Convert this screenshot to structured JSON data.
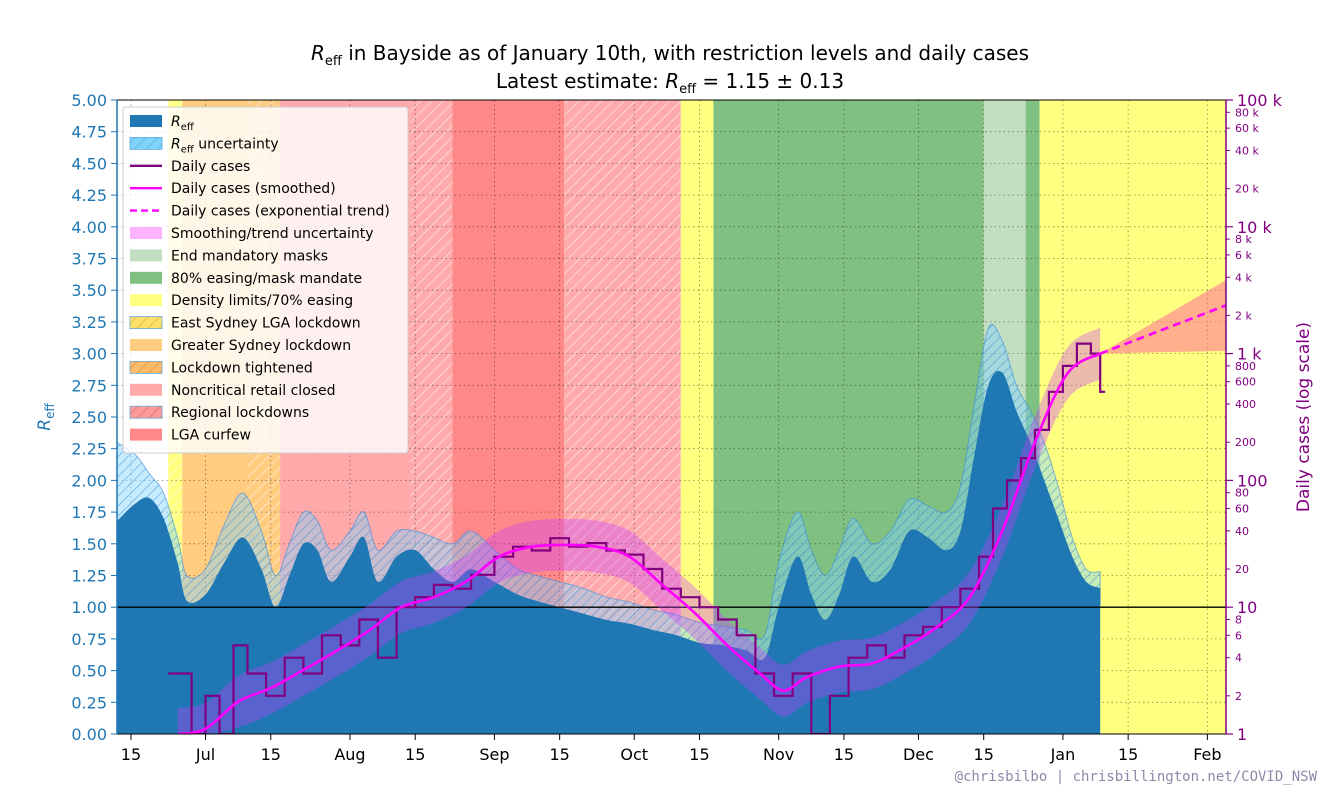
{
  "chart_data": {
    "type": "line",
    "title_line1": "R_eff in Bayside as of January 10th, with restriction levels and daily cases",
    "title_line2": "Latest estimate: R_eff = 1.15 ± 0.13",
    "title_parts": {
      "line1_symbol": "R",
      "line1_sub": "eff",
      "line1_rest": " in Bayside as of January 10th, with restriction levels and daily cases",
      "line2_prefix": "Latest estimate: ",
      "line2_symbol": "R",
      "line2_sub": "eff",
      "line2_rest": " = 1.15 ± 0.13"
    },
    "ylabel_left": "R_eff",
    "ylabel_left_symbol": "R",
    "ylabel_left_sub": "eff",
    "ylabel_right": "Daily cases (log scale)",
    "credit": "@chrisbilbo | chrisbillington.net/COVID_NSW",
    "x_axis": {
      "start": "2021-06-12",
      "end": "2022-02-05",
      "ticks": [
        {
          "date": "2021-06-15",
          "label": "15"
        },
        {
          "date": "2021-07-01",
          "label": "Jul"
        },
        {
          "date": "2021-07-15",
          "label": "15"
        },
        {
          "date": "2021-08-01",
          "label": "Aug"
        },
        {
          "date": "2021-08-15",
          "label": "15"
        },
        {
          "date": "2021-09-01",
          "label": "Sep"
        },
        {
          "date": "2021-09-15",
          "label": "15"
        },
        {
          "date": "2021-10-01",
          "label": "Oct"
        },
        {
          "date": "2021-10-15",
          "label": "15"
        },
        {
          "date": "2021-11-01",
          "label": "Nov"
        },
        {
          "date": "2021-11-15",
          "label": "15"
        },
        {
          "date": "2021-12-01",
          "label": "Dec"
        },
        {
          "date": "2021-12-15",
          "label": "15"
        },
        {
          "date": "2022-01-01",
          "label": "Jan"
        },
        {
          "date": "2022-01-15",
          "label": "15"
        },
        {
          "date": "2022-02-01",
          "label": "Feb"
        }
      ]
    },
    "y_left": {
      "range": [
        0,
        5
      ],
      "ticks": [
        "0.00",
        "0.25",
        "0.50",
        "0.75",
        "1.00",
        "1.25",
        "1.50",
        "1.75",
        "2.00",
        "2.25",
        "2.50",
        "2.75",
        "3.00",
        "3.25",
        "3.50",
        "3.75",
        "4.00",
        "4.25",
        "4.50",
        "4.75",
        "5.00"
      ]
    },
    "y_right": {
      "scale": "log",
      "range": [
        1,
        100000
      ],
      "major_ticks": [
        {
          "value": 1,
          "label": "1"
        },
        {
          "value": 10,
          "label": "10"
        },
        {
          "value": 100,
          "label": "100"
        },
        {
          "value": 1000,
          "label": "1 k"
        },
        {
          "value": 10000,
          "label": "10 k"
        },
        {
          "value": 100000,
          "label": "100 k"
        }
      ],
      "minor_ticks": [
        {
          "value": 2,
          "label": "2"
        },
        {
          "value": 4,
          "label": "4"
        },
        {
          "value": 6,
          "label": "6"
        },
        {
          "value": 8,
          "label": "8"
        },
        {
          "value": 20,
          "label": "20"
        },
        {
          "value": 40,
          "label": "40"
        },
        {
          "value": 60,
          "label": "60"
        },
        {
          "value": 80,
          "label": "80"
        },
        {
          "value": 200,
          "label": "200"
        },
        {
          "value": 400,
          "label": "400"
        },
        {
          "value": 600,
          "label": "600"
        },
        {
          "value": 800,
          "label": "800"
        },
        {
          "value": 2000,
          "label": "2 k"
        },
        {
          "value": 4000,
          "label": "4 k"
        },
        {
          "value": 6000,
          "label": "6 k"
        },
        {
          "value": 8000,
          "label": "8 k"
        },
        {
          "value": 20000,
          "label": "20 k"
        },
        {
          "value": 40000,
          "label": "40 k"
        },
        {
          "value": 60000,
          "label": "60 k"
        },
        {
          "value": 80000,
          "label": "80 k"
        }
      ]
    },
    "grid": true,
    "reference_line": 1.0,
    "legend": {
      "placement": "upper-left",
      "entries": [
        {
          "label": "R_eff",
          "sym": "R",
          "sub": "eff",
          "style": "solid-patch",
          "color": "#1f77b4"
        },
        {
          "label": "R_eff uncertainty",
          "sym": "R",
          "sub": "eff",
          "rest": " uncertainty",
          "style": "hatch-patch",
          "color": "#7fd4ff"
        },
        {
          "label": "Daily cases",
          "style": "line",
          "color": "#800080"
        },
        {
          "label": "Daily cases (smoothed)",
          "style": "line",
          "color": "#ff00ff"
        },
        {
          "label": "Daily cases (exponential trend)",
          "style": "dashed",
          "color": "#ff00ff"
        },
        {
          "label": "Smoothing/trend uncertainty",
          "style": "solid-patch",
          "color": "#ffb3ff"
        },
        {
          "label": "End mandatory masks",
          "style": "solid-patch",
          "color": "#c2dfc2"
        },
        {
          "label": "80% easing/mask mandate",
          "style": "solid-patch",
          "color": "#80c080"
        },
        {
          "label": "Density limits/70% easing",
          "style": "solid-patch",
          "color": "#ffff80"
        },
        {
          "label": "East Sydney LGA lockdown",
          "style": "hatch-patch",
          "color": "#ffe066"
        },
        {
          "label": "Greater Sydney lockdown",
          "style": "solid-patch",
          "color": "#ffcc80"
        },
        {
          "label": "Lockdown tightened",
          "style": "hatch-patch",
          "color": "#ffbb66"
        },
        {
          "label": "Noncritical retail closed",
          "style": "solid-patch",
          "color": "#ffaaaa"
        },
        {
          "label": "Regional lockdowns",
          "style": "hatch-patch",
          "color": "#ff9999"
        },
        {
          "label": "LGA curfew",
          "style": "solid-patch",
          "color": "#ff8888"
        }
      ]
    },
    "restriction_periods": [
      {
        "start": "2021-06-12",
        "end": "2021-06-23",
        "level": "none",
        "color": "#ffffff",
        "hatch": false
      },
      {
        "start": "2021-06-23",
        "end": "2021-06-26",
        "level": "East Sydney LGA lockdown",
        "color": "#ffff80",
        "hatch": true
      },
      {
        "start": "2021-06-26",
        "end": "2021-07-10",
        "level": "Greater Sydney lockdown",
        "color": "#ffcc80",
        "hatch": false
      },
      {
        "start": "2021-07-10",
        "end": "2021-07-17",
        "level": "Lockdown tightened",
        "color": "#ffcc80",
        "hatch": true
      },
      {
        "start": "2021-07-17",
        "end": "2021-08-14",
        "level": "Noncritical retail closed",
        "color": "#ffaaaa",
        "hatch": false
      },
      {
        "start": "2021-08-14",
        "end": "2021-08-23",
        "level": "Regional lockdowns",
        "color": "#ffaaaa",
        "hatch": true
      },
      {
        "start": "2021-08-23",
        "end": "2021-09-16",
        "level": "LGA curfew",
        "color": "#ff8888",
        "hatch": false
      },
      {
        "start": "2021-09-16",
        "end": "2021-10-11",
        "level": "Regional lockdowns",
        "color": "#ffaaaa",
        "hatch": true
      },
      {
        "start": "2021-10-11",
        "end": "2021-10-18",
        "level": "Density limits/70% easing",
        "color": "#ffff80",
        "hatch": false
      },
      {
        "start": "2021-10-18",
        "end": "2021-12-15",
        "level": "80% easing/mask mandate",
        "color": "#80c080",
        "hatch": false
      },
      {
        "start": "2021-12-15",
        "end": "2021-12-24",
        "level": "End mandatory masks",
        "color": "#c2dfc2",
        "hatch": false
      },
      {
        "start": "2021-12-24",
        "end": "2021-12-27",
        "level": "80% easing/mask mandate",
        "color": "#80c080",
        "hatch": false
      },
      {
        "start": "2021-12-27",
        "end": "2022-02-05",
        "level": "Density limits/70% easing",
        "color": "#ffff80",
        "hatch": false
      }
    ],
    "reff_series": {
      "dates": [
        "2021-06-12",
        "2021-06-16",
        "2021-06-19",
        "2021-06-22",
        "2021-06-25",
        "2021-06-27",
        "2021-07-01",
        "2021-07-05",
        "2021-07-09",
        "2021-07-13",
        "2021-07-16",
        "2021-07-19",
        "2021-07-22",
        "2021-07-25",
        "2021-07-28",
        "2021-08-01",
        "2021-08-04",
        "2021-08-07",
        "2021-08-11",
        "2021-08-15",
        "2021-08-19",
        "2021-08-23",
        "2021-08-27",
        "2021-09-01",
        "2021-09-06",
        "2021-09-10",
        "2021-09-15",
        "2021-09-20",
        "2021-09-25",
        "2021-09-30",
        "2021-10-05",
        "2021-10-10",
        "2021-10-15",
        "2021-10-20",
        "2021-10-25",
        "2021-10-29",
        "2021-11-01",
        "2021-11-05",
        "2021-11-08",
        "2021-11-11",
        "2021-11-14",
        "2021-11-17",
        "2021-11-21",
        "2021-11-25",
        "2021-11-29",
        "2021-12-03",
        "2021-12-07",
        "2021-12-10",
        "2021-12-13",
        "2021-12-16",
        "2021-12-19",
        "2021-12-22",
        "2021-12-25",
        "2021-12-28",
        "2021-12-31",
        "2022-01-03",
        "2022-01-06",
        "2022-01-09"
      ],
      "values": [
        1.68,
        1.82,
        1.86,
        1.7,
        1.35,
        1.05,
        1.1,
        1.35,
        1.55,
        1.3,
        1.0,
        1.25,
        1.5,
        1.45,
        1.2,
        1.4,
        1.55,
        1.2,
        1.4,
        1.45,
        1.3,
        1.2,
        1.3,
        1.2,
        1.1,
        1.05,
        1.0,
        0.95,
        0.9,
        0.87,
        0.82,
        0.78,
        0.72,
        0.7,
        0.66,
        0.6,
        1.0,
        1.4,
        1.1,
        0.9,
        1.1,
        1.4,
        1.2,
        1.3,
        1.6,
        1.55,
        1.45,
        1.6,
        2.2,
        2.75,
        2.85,
        2.55,
        2.3,
        2.0,
        1.7,
        1.4,
        1.2,
        1.15
      ],
      "lower": [
        1.0,
        1.0,
        0.98,
        0.92,
        0.75,
        0.6,
        0.62,
        0.78,
        0.9,
        0.75,
        0.55,
        0.7,
        0.88,
        0.85,
        0.68,
        0.82,
        0.92,
        0.7,
        0.85,
        0.9,
        0.95,
        0.95,
        1.05,
        1.0,
        0.9,
        0.85,
        0.82,
        0.78,
        0.74,
        0.7,
        0.66,
        0.62,
        0.58,
        0.55,
        0.5,
        0.45,
        0.6,
        0.9,
        0.72,
        0.55,
        0.7,
        0.95,
        0.82,
        0.92,
        1.15,
        1.15,
        1.08,
        1.22,
        1.8,
        2.35,
        2.45,
        2.25,
        2.05,
        1.8,
        1.55,
        1.28,
        1.1,
        1.02
      ],
      "upper": [
        2.3,
        2.2,
        2.05,
        1.9,
        1.55,
        1.25,
        1.3,
        1.65,
        1.9,
        1.6,
        1.25,
        1.5,
        1.75,
        1.68,
        1.45,
        1.6,
        1.75,
        1.45,
        1.6,
        1.6,
        1.55,
        1.5,
        1.6,
        1.45,
        1.3,
        1.25,
        1.2,
        1.15,
        1.08,
        1.04,
        0.98,
        0.94,
        0.88,
        0.85,
        0.82,
        0.78,
        1.35,
        1.75,
        1.45,
        1.25,
        1.45,
        1.7,
        1.5,
        1.6,
        1.85,
        1.8,
        1.75,
        1.95,
        2.6,
        3.2,
        3.1,
        2.75,
        2.55,
        2.3,
        1.95,
        1.55,
        1.3,
        1.28
      ]
    },
    "daily_cases": {
      "dates": [
        "2021-06-23",
        "2021-06-28",
        "2021-07-01",
        "2021-07-04",
        "2021-07-07",
        "2021-07-10",
        "2021-07-14",
        "2021-07-18",
        "2021-07-22",
        "2021-07-26",
        "2021-07-30",
        "2021-08-03",
        "2021-08-07",
        "2021-08-11",
        "2021-08-15",
        "2021-08-19",
        "2021-08-23",
        "2021-08-27",
        "2021-09-01",
        "2021-09-05",
        "2021-09-09",
        "2021-09-13",
        "2021-09-17",
        "2021-09-21",
        "2021-09-25",
        "2021-09-29",
        "2021-10-03",
        "2021-10-07",
        "2021-10-11",
        "2021-10-15",
        "2021-10-19",
        "2021-10-23",
        "2021-10-27",
        "2021-10-31",
        "2021-11-04",
        "2021-11-08",
        "2021-11-12",
        "2021-11-16",
        "2021-11-20",
        "2021-11-24",
        "2021-11-28",
        "2021-12-02",
        "2021-12-06",
        "2021-12-10",
        "2021-12-14",
        "2021-12-17",
        "2021-12-20",
        "2021-12-23",
        "2021-12-26",
        "2021-12-29",
        "2022-01-01",
        "2022-01-04",
        "2022-01-07",
        "2022-01-09"
      ],
      "values": [
        3,
        1,
        2,
        1,
        5,
        3,
        2,
        4,
        3,
        6,
        5,
        8,
        4,
        10,
        12,
        15,
        14,
        18,
        25,
        30,
        28,
        35,
        30,
        32,
        28,
        26,
        20,
        14,
        12,
        10,
        8,
        6,
        3,
        2,
        3,
        1,
        2,
        4,
        5,
        4,
        6,
        7,
        10,
        14,
        25,
        60,
        100,
        150,
        250,
        500,
        800,
        1200,
        1000,
        500
      ]
    },
    "smoothed_cases": {
      "dates": [
        "2021-06-25",
        "2021-07-01",
        "2021-07-08",
        "2021-07-15",
        "2021-07-22",
        "2021-07-29",
        "2021-08-05",
        "2021-08-12",
        "2021-08-19",
        "2021-08-26",
        "2021-09-02",
        "2021-09-09",
        "2021-09-16",
        "2021-09-23",
        "2021-09-30",
        "2021-10-07",
        "2021-10-14",
        "2021-10-21",
        "2021-10-28",
        "2021-11-02",
        "2021-11-07",
        "2021-11-14",
        "2021-11-21",
        "2021-11-28",
        "2021-12-05",
        "2021-12-12",
        "2021-12-19",
        "2021-12-26",
        "2022-01-02",
        "2022-01-09"
      ],
      "values": [
        1.0,
        1.1,
        1.8,
        2.3,
        3.2,
        4.5,
        6.5,
        10,
        12,
        16,
        25,
        30,
        31,
        30,
        25,
        15,
        9,
        5,
        3,
        2.2,
        2.8,
        3.4,
        3.6,
        4.8,
        7,
        12,
        40,
        200,
        700,
        1000
      ]
    },
    "trend": {
      "dates": [
        "2022-01-09",
        "2022-02-05"
      ],
      "values": [
        1000,
        2400
      ],
      "upper_end": 3800,
      "lower_end": 1050
    }
  }
}
